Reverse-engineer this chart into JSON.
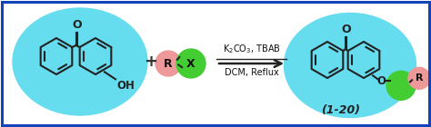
{
  "bg_color": "#ffffff",
  "border_color": "#1144bb",
  "border_lw": 2.5,
  "cyan_color": "#66ddee",
  "cyan_alpha": 1.0,
  "green_color": "#44cc33",
  "pink_color": "#ee9999",
  "arrow_color": "#222222",
  "reagent1": "K$_2$CO$_3$, TBAB",
  "reagent2": "DCM, Reflux",
  "label_product": "(1-20)",
  "R_label": "R",
  "X_label": "X",
  "O_label": "O",
  "line_color": "#222222",
  "text_color": "#111111"
}
